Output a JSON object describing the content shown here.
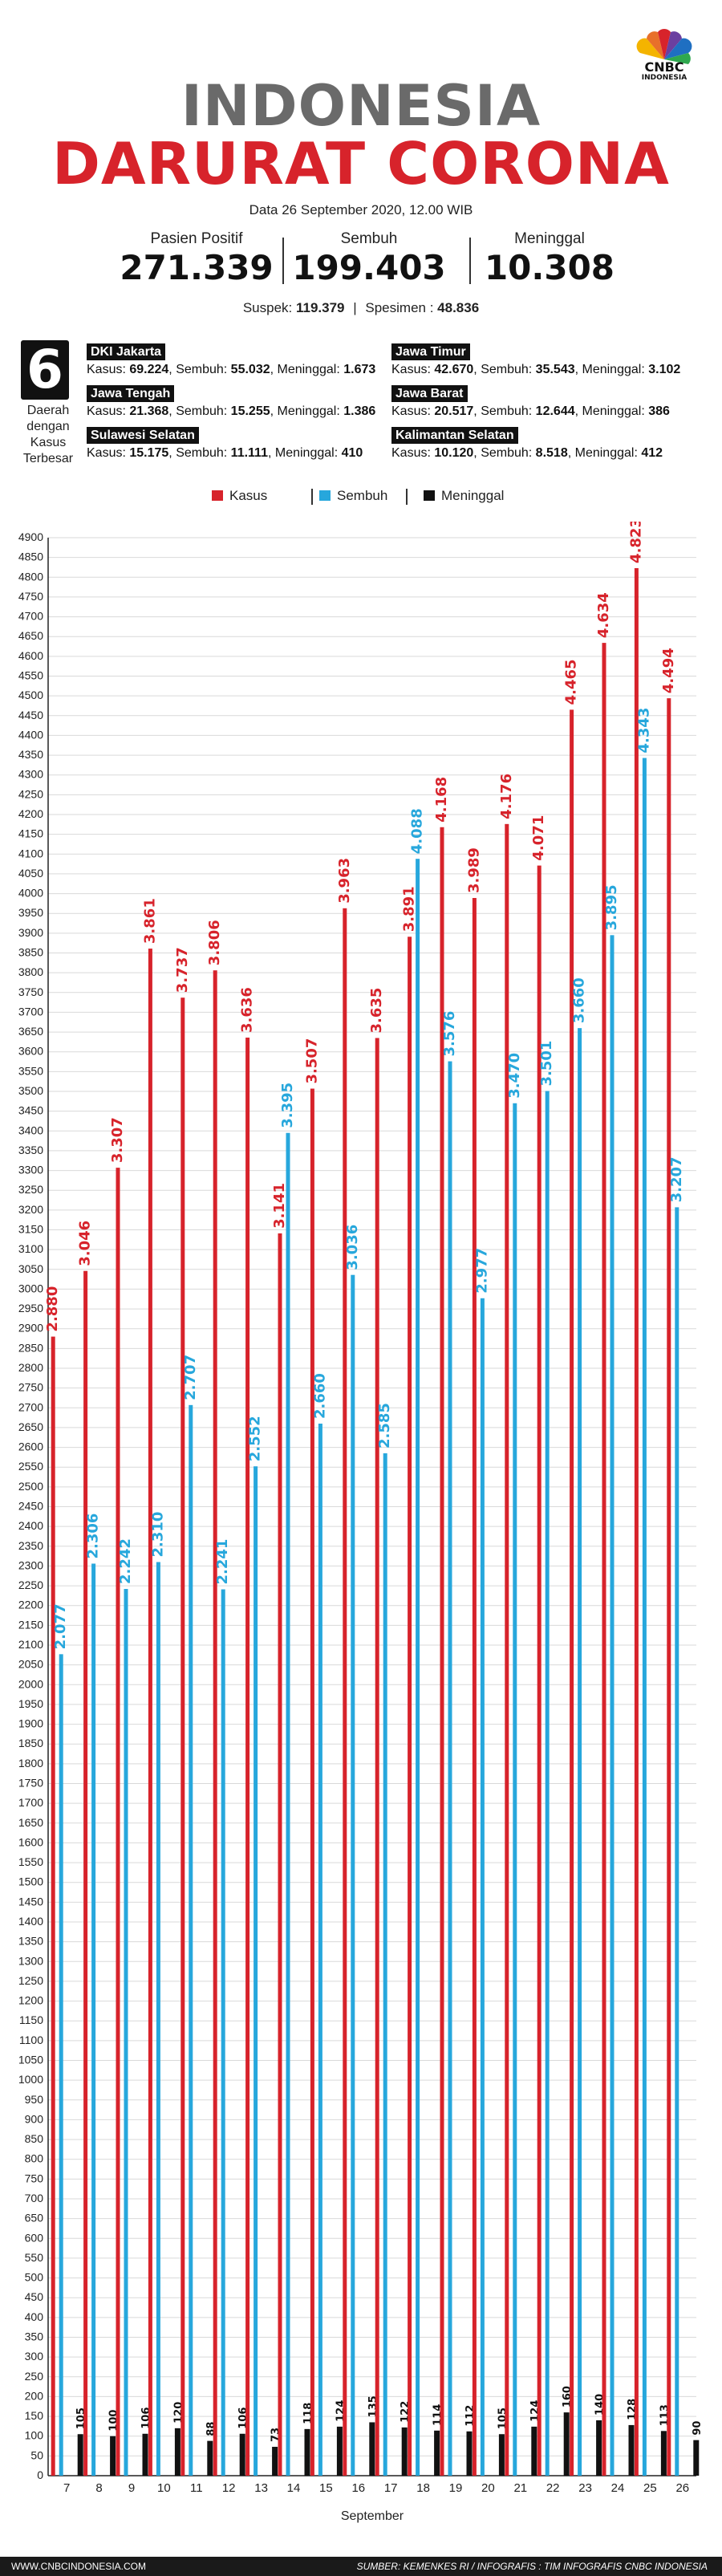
{
  "header": {
    "title_line1": "INDONESIA",
    "title_line2": "DARURAT CORONA",
    "date": "Data 26 September 2020, 12.00 WIB",
    "logo_text": "CNBC",
    "logo_subtext": "INDONESIA"
  },
  "stats": [
    {
      "label": "Pasien Positif",
      "value": "271.339"
    },
    {
      "label": "Sembuh",
      "value": "199.403"
    },
    {
      "label": "Meninggal",
      "value": "10.308"
    }
  ],
  "subline": {
    "suspek_label": "Suspek: ",
    "suspek_value": "119.379",
    "divider": "|",
    "spesimen_label": "Spesimen : ",
    "spesimen_value": "48.836"
  },
  "regions_block": {
    "count": "6",
    "label": "Daerah dengan Kasus Terbesar",
    "items": [
      {
        "name": "DKI Jakarta",
        "k_label": "Kasus: ",
        "kasus": "69.224",
        "s_label": ", Sembuh: ",
        "sembuh": "55.032",
        "m_label": ", Meninggal: ",
        "meninggal": "1.673"
      },
      {
        "name": "Jawa Timur",
        "k_label": "Kasus: ",
        "kasus": "42.670",
        "s_label": ", Sembuh: ",
        "sembuh": "35.543",
        "m_label": ", Meninggal: ",
        "meninggal": "3.102"
      },
      {
        "name": "Jawa Tengah",
        "k_label": "Kasus: ",
        "kasus": "21.368",
        "s_label": ", Sembuh: ",
        "sembuh": "15.255",
        "m_label": ", Meninggal: ",
        "meninggal": "1.386"
      },
      {
        "name": "Jawa Barat",
        "k_label": "Kasus: ",
        "kasus": "20.517",
        "s_label": ", Sembuh: ",
        "sembuh": "12.644",
        "m_label": ", Meninggal: ",
        "meninggal": "386"
      },
      {
        "name": "Sulawesi Selatan",
        "k_label": "Kasus: ",
        "kasus": "15.175",
        "s_label": ", Sembuh: ",
        "sembuh": "11.111",
        "m_label": ", Meninggal: ",
        "meninggal": "410"
      },
      {
        "name": "Kalimantan Selatan",
        "k_label": "Kasus: ",
        "kasus": "10.120",
        "s_label": ", Sembuh: ",
        "sembuh": "8.518",
        "m_label": ", Meninggal: ",
        "meninggal": "412"
      }
    ]
  },
  "legend": [
    {
      "label": "Kasus",
      "color": "#d7232b"
    },
    {
      "label": "Sembuh",
      "color": "#27a7dc"
    },
    {
      "label": "Meninggal",
      "color": "#111111"
    }
  ],
  "chart_data": {
    "type": "bar",
    "xlabel": "September",
    "ylabel": "",
    "ylim": [
      0,
      4900
    ],
    "ytick_step": 50,
    "grid": true,
    "legend_position": "top-center",
    "categories": [
      "7",
      "8",
      "9",
      "10",
      "11",
      "12",
      "13",
      "14",
      "15",
      "16",
      "17",
      "18",
      "19",
      "20",
      "21",
      "22",
      "23",
      "24",
      "25",
      "26"
    ],
    "series": [
      {
        "name": "Kasus",
        "color": "#d7232b",
        "values": [
          2880,
          3046,
          3307,
          3861,
          3737,
          3806,
          3636,
          3141,
          3507,
          3963,
          3635,
          3891,
          4168,
          3989,
          4176,
          4071,
          4465,
          4634,
          4823,
          4494
        ],
        "labels": [
          "2.880",
          "3.046",
          "3.307",
          "3.861",
          "3.737",
          "3.806",
          "3.636",
          "3.141",
          "3.507",
          "3.963",
          "3.635",
          "3.891",
          "4.168",
          "3.989",
          "4.176",
          "4.071",
          "4.465",
          "4.634",
          "4.823",
          "4.494"
        ]
      },
      {
        "name": "Sembuh",
        "color": "#27a7dc",
        "values": [
          2077,
          2306,
          2242,
          2310,
          2707,
          2241,
          2552,
          3395,
          2660,
          3036,
          2585,
          4088,
          3576,
          2977,
          3470,
          3501,
          3660,
          3895,
          4343,
          3207
        ],
        "labels": [
          "2.077",
          "2.306",
          "2.242",
          "2.310",
          "2.707",
          "2.241",
          "2.552",
          "3.395",
          "2.660",
          "3.036",
          "2.585",
          "4.088",
          "3.576",
          "2.977",
          "3.470",
          "3.501",
          "3.660",
          "3.895",
          "4.343",
          "3.207"
        ]
      },
      {
        "name": "Meninggal",
        "color": "#111111",
        "values": [
          105,
          100,
          106,
          120,
          88,
          106,
          73,
          118,
          124,
          135,
          122,
          114,
          112,
          105,
          124,
          160,
          140,
          128,
          113,
          90
        ],
        "labels": [
          "105",
          "100",
          "106",
          "120",
          "88",
          "106",
          "73",
          "118",
          "124",
          "135",
          "122",
          "114",
          "112",
          "105",
          "124",
          "160",
          "140",
          "128",
          "113",
          "90"
        ]
      }
    ]
  },
  "footer": {
    "website": "WWW.CNBCINDONESIA.COM",
    "source": "SUMBER: KEMENKES RI / INFOGRAFIS : TIM INFOGRAFIS CNBC INDONESIA"
  }
}
